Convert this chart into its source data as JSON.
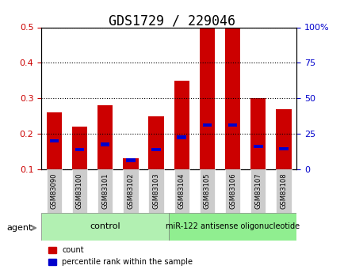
{
  "title": "GDS1729 / 229046",
  "categories": [
    "GSM83090",
    "GSM83100",
    "GSM83101",
    "GSM83102",
    "GSM83103",
    "GSM83104",
    "GSM83105",
    "GSM83106",
    "GSM83107",
    "GSM83108"
  ],
  "count_values": [
    0.26,
    0.22,
    0.28,
    0.13,
    0.25,
    0.35,
    0.5,
    0.5,
    0.3,
    0.27
  ],
  "percentile_values": [
    0.18,
    0.155,
    0.17,
    0.125,
    0.155,
    0.19,
    0.225,
    0.225,
    0.165,
    0.158
  ],
  "ylim_left": [
    0.1,
    0.5
  ],
  "ylim_right": [
    0,
    100
  ],
  "yticks_left": [
    0.1,
    0.2,
    0.3,
    0.4,
    0.5
  ],
  "yticks_right": [
    0,
    25,
    50,
    75,
    100
  ],
  "ytick_labels_left": [
    "0.1",
    "0.2",
    "0.3",
    "0.4",
    "0.5"
  ],
  "ytick_labels_right": [
    "0",
    "25",
    "50",
    "75",
    "100%"
  ],
  "bar_color_red": "#cc0000",
  "bar_color_blue": "#0000cc",
  "grid_color": "#000000",
  "bar_width": 0.6,
  "control_group": [
    "GSM83090",
    "GSM83100",
    "GSM83101",
    "GSM83102",
    "GSM83103"
  ],
  "treatment_group": [
    "GSM83104",
    "GSM83105",
    "GSM83106",
    "GSM83107",
    "GSM83108"
  ],
  "control_label": "control",
  "treatment_label": "miR-122 antisense oligonucleotide",
  "agent_label": "agent",
  "legend_count": "count",
  "legend_percentile": "percentile rank within the sample",
  "bg_color_plot": "#ffffff",
  "bg_color_xticklabels": "#d3d3d3",
  "bg_color_control": "#b2f0b2",
  "bg_color_treatment": "#90ee90",
  "title_fontsize": 12,
  "tick_fontsize": 8,
  "label_fontsize": 8
}
